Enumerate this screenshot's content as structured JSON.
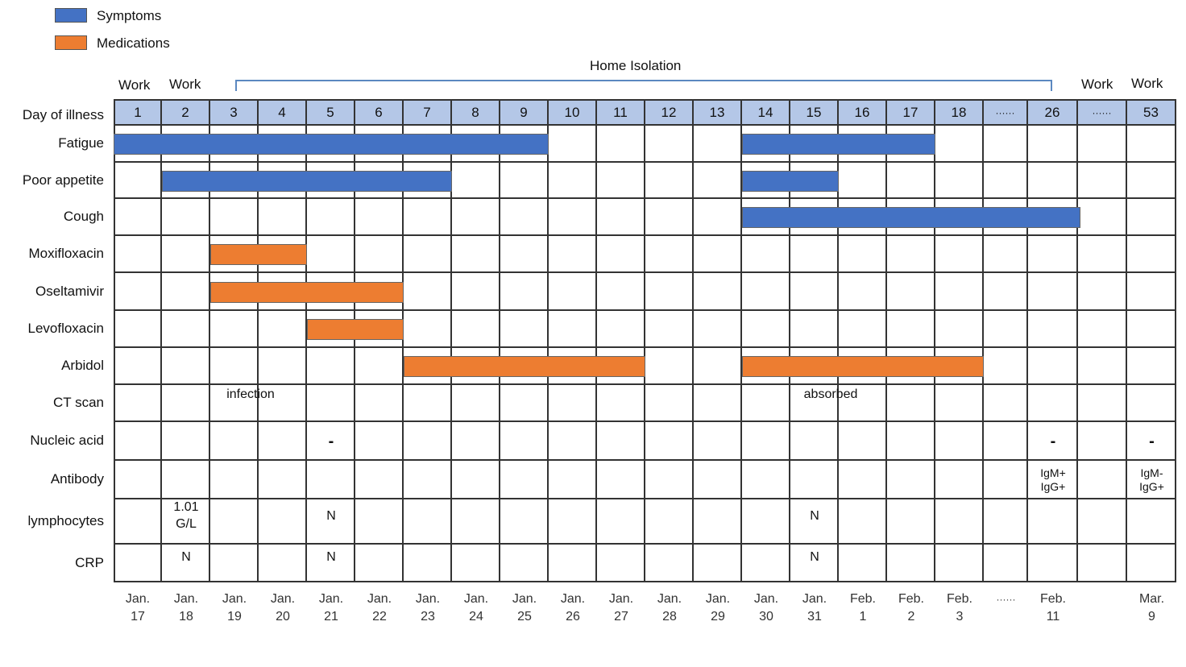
{
  "legend": [
    {
      "label": "Symptoms",
      "color": "#4472c4"
    },
    {
      "label": "Medications",
      "color": "#ed7d31"
    }
  ],
  "isolation_label": "Home Isolation",
  "work_labels": [
    "Work",
    "Work",
    "Work",
    "Work"
  ],
  "header_label": "Day of illness",
  "days": [
    "1",
    "2",
    "3",
    "4",
    "5",
    "6",
    "7",
    "8",
    "9",
    "10",
    "11",
    "12",
    "13",
    "14",
    "15",
    "16",
    "17",
    "18",
    "······",
    "26",
    "······",
    "53"
  ],
  "dates": [
    [
      "Jan.",
      "17"
    ],
    [
      "Jan.",
      "18"
    ],
    [
      "Jan.",
      "19"
    ],
    [
      "Jan.",
      "20"
    ],
    [
      "Jan.",
      "21"
    ],
    [
      "Jan.",
      "22"
    ],
    [
      "Jan.",
      "23"
    ],
    [
      "Jan.",
      "24"
    ],
    [
      "Jan.",
      "25"
    ],
    [
      "Jan.",
      "26"
    ],
    [
      "Jan.",
      "27"
    ],
    [
      "Jan.",
      "28"
    ],
    [
      "Jan.",
      "29"
    ],
    [
      "Jan.",
      "30"
    ],
    [
      "Jan.",
      "31"
    ],
    [
      "Feb.",
      "1"
    ],
    [
      "Feb.",
      "2"
    ],
    [
      "Feb.",
      "3"
    ],
    [
      "······",
      ""
    ],
    [
      "Feb.",
      "11"
    ],
    [
      "",
      ""
    ],
    [
      "Mar.",
      "9"
    ]
  ],
  "rows": [
    "Fatigue",
    "Poor appetite",
    "Cough",
    "Moxifloxacin",
    "Oseltamivir",
    "Levofloxacin",
    "Arbidol",
    "CT scan",
    "Nucleic acid",
    "Antibody",
    "lymphocytes",
    "CRP"
  ],
  "bars": [
    {
      "row": 0,
      "from": 0,
      "to": 9,
      "kind": "symptom"
    },
    {
      "row": 0,
      "from": 13,
      "to": 17,
      "kind": "symptom"
    },
    {
      "row": 1,
      "from": 1,
      "to": 7,
      "kind": "symptom"
    },
    {
      "row": 1,
      "from": 13,
      "to": 15,
      "kind": "symptom"
    },
    {
      "row": 2,
      "from": 13,
      "to": 20.05,
      "kind": "symptom"
    },
    {
      "row": 3,
      "from": 2,
      "to": 4,
      "kind": "medication"
    },
    {
      "row": 4,
      "from": 2,
      "to": 6,
      "kind": "medication"
    },
    {
      "row": 5,
      "from": 4,
      "to": 6,
      "kind": "medication"
    },
    {
      "row": 6,
      "from": 6,
      "to": 11,
      "kind": "medication"
    },
    {
      "row": 6,
      "from": 13,
      "to": 18,
      "kind": "medication"
    }
  ],
  "notes": [
    {
      "row": 7,
      "col": 2,
      "text": "infection"
    },
    {
      "row": 7,
      "col": 14,
      "text": "absorbed"
    },
    {
      "row": 8,
      "col": 4,
      "text": "-"
    },
    {
      "row": 8,
      "col": 19,
      "text": "-"
    },
    {
      "row": 8,
      "col": 21,
      "text": "-"
    },
    {
      "row": 9,
      "col": 19,
      "text": "IgM+\nIgG+"
    },
    {
      "row": 9,
      "col": 21,
      "text": "IgM-\nIgG+"
    },
    {
      "row": 10,
      "col": 1,
      "text": "1.01\nG/L"
    },
    {
      "row": 10,
      "col": 4,
      "text": "N"
    },
    {
      "row": 10,
      "col": 14,
      "text": "N"
    },
    {
      "row": 11,
      "col": 1,
      "text": "N"
    },
    {
      "row": 11,
      "col": 4,
      "text": "N"
    },
    {
      "row": 11,
      "col": 14,
      "text": "N"
    }
  ]
}
